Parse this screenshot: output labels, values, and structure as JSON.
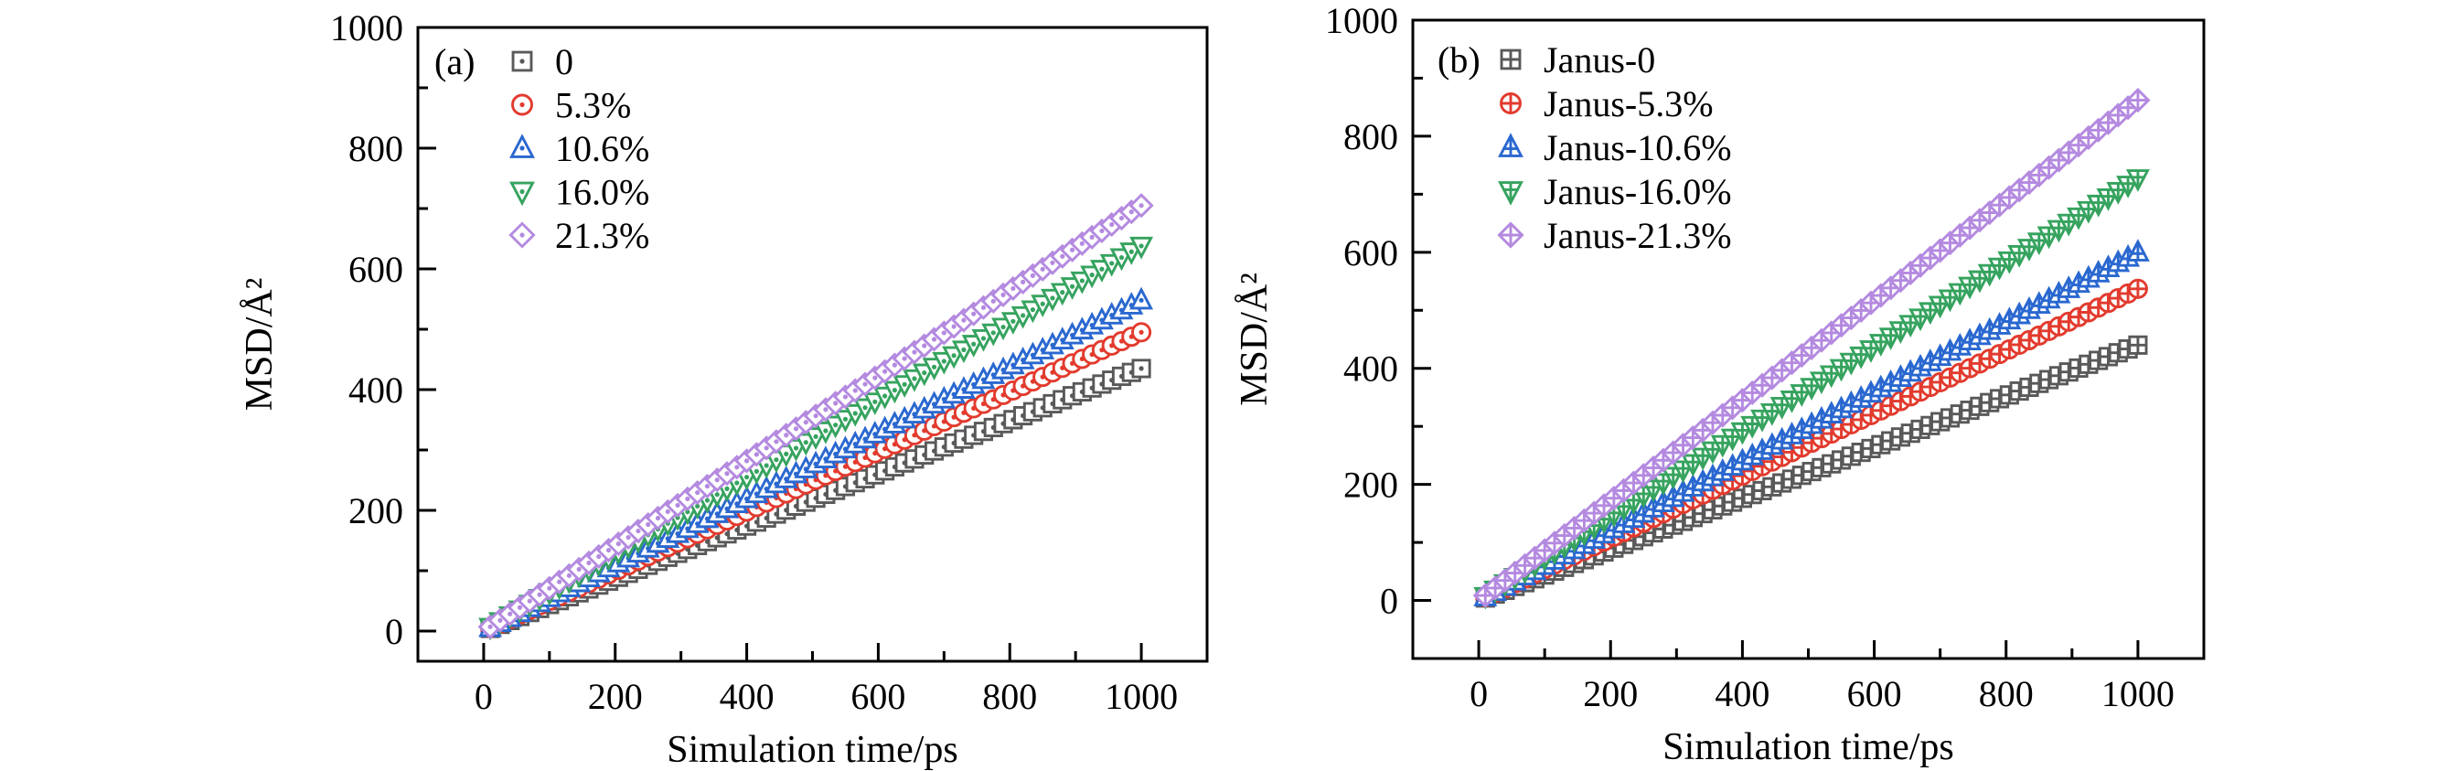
{
  "figure_background": "#ffffff",
  "chart_data": [
    {
      "id": "a",
      "type": "scatter",
      "panel_label": "(a)",
      "title": "",
      "xlabel": "Simulation time/ps",
      "ylabel": "MSD/Å²",
      "xlim": [
        -100,
        1100
      ],
      "ylim": [
        -50,
        1000
      ],
      "x_major_ticks": [
        0,
        200,
        400,
        600,
        800,
        1000
      ],
      "y_major_ticks": [
        0,
        200,
        400,
        600,
        800,
        1000
      ],
      "x_minor_ticks": [
        100,
        300,
        500,
        700,
        900
      ],
      "y_minor_ticks": [
        100,
        300,
        500,
        700,
        900
      ],
      "grid": false,
      "legend_position": "top-left",
      "marker_style": "open-with-dot",
      "marker_x_start": 10,
      "marker_x_end": 1000,
      "marker_step": 15,
      "x_sample": [
        0,
        100,
        200,
        300,
        400,
        500,
        600,
        700,
        800,
        900,
        1000
      ],
      "series": [
        {
          "name": "0",
          "marker": "square",
          "color": "#595959",
          "y_sample": [
            0,
            44,
            87,
            131,
            174,
            218,
            261,
            305,
            348,
            392,
            435
          ]
        },
        {
          "name": "5.3%",
          "marker": "circle",
          "color": "#e23b2e",
          "y_sample": [
            0,
            50,
            99,
            149,
            198,
            248,
            297,
            347,
            396,
            446,
            495
          ]
        },
        {
          "name": "10.6%",
          "marker": "triangle-up",
          "color": "#2a68d0",
          "y_sample": [
            0,
            55,
            110,
            164,
            219,
            274,
            329,
            384,
            438,
            493,
            548
          ]
        },
        {
          "name": "16.0%",
          "marker": "triangle-down",
          "color": "#36a35f",
          "y_sample": [
            0,
            64,
            128,
            191,
            255,
            319,
            383,
            447,
            510,
            574,
            638
          ]
        },
        {
          "name": "21.3%",
          "marker": "diamond",
          "color": "#b48ae0",
          "y_sample": [
            0,
            71,
            141,
            212,
            282,
            353,
            423,
            494,
            564,
            635,
            705
          ]
        }
      ]
    },
    {
      "id": "b",
      "type": "scatter",
      "panel_label": "(b)",
      "title": "",
      "xlabel": "Simulation time/ps",
      "ylabel": "MSD/Å²",
      "xlim": [
        -100,
        1100
      ],
      "ylim": [
        -100,
        1000
      ],
      "x_major_ticks": [
        0,
        200,
        400,
        600,
        800,
        1000
      ],
      "y_major_ticks": [
        0,
        200,
        400,
        600,
        800,
        1000
      ],
      "x_minor_ticks": [
        100,
        300,
        500,
        700,
        900
      ],
      "y_minor_ticks": [
        100,
        300,
        500,
        700,
        900
      ],
      "grid": false,
      "legend_position": "top-left",
      "marker_style": "open-with-plus",
      "marker_x_start": 10,
      "marker_x_end": 1000,
      "marker_step": 15,
      "x_sample": [
        0,
        100,
        200,
        300,
        400,
        500,
        600,
        700,
        800,
        900,
        1000
      ],
      "series": [
        {
          "name": "Janus-0",
          "marker": "square",
          "color": "#595959",
          "y_sample": [
            0,
            44,
            88,
            132,
            176,
            220,
            264,
            308,
            352,
            396,
            440
          ]
        },
        {
          "name": "Janus-5.3%",
          "marker": "circle",
          "color": "#e23b2e",
          "y_sample": [
            0,
            54,
            107,
            161,
            215,
            269,
            322,
            376,
            430,
            483,
            537
          ]
        },
        {
          "name": "Janus-10.6%",
          "marker": "triangle-up",
          "color": "#2a68d0",
          "y_sample": [
            0,
            60,
            120,
            180,
            240,
            300,
            360,
            420,
            480,
            540,
            600
          ]
        },
        {
          "name": "Janus-16.0%",
          "marker": "triangle-down",
          "color": "#36a35f",
          "y_sample": [
            0,
            73,
            145,
            218,
            291,
            364,
            436,
            509,
            582,
            654,
            727
          ]
        },
        {
          "name": "Janus-21.3%",
          "marker": "diamond",
          "color": "#b48ae0",
          "y_sample": [
            0,
            86,
            172,
            259,
            345,
            431,
            517,
            603,
            690,
            776,
            862
          ]
        }
      ]
    }
  ]
}
